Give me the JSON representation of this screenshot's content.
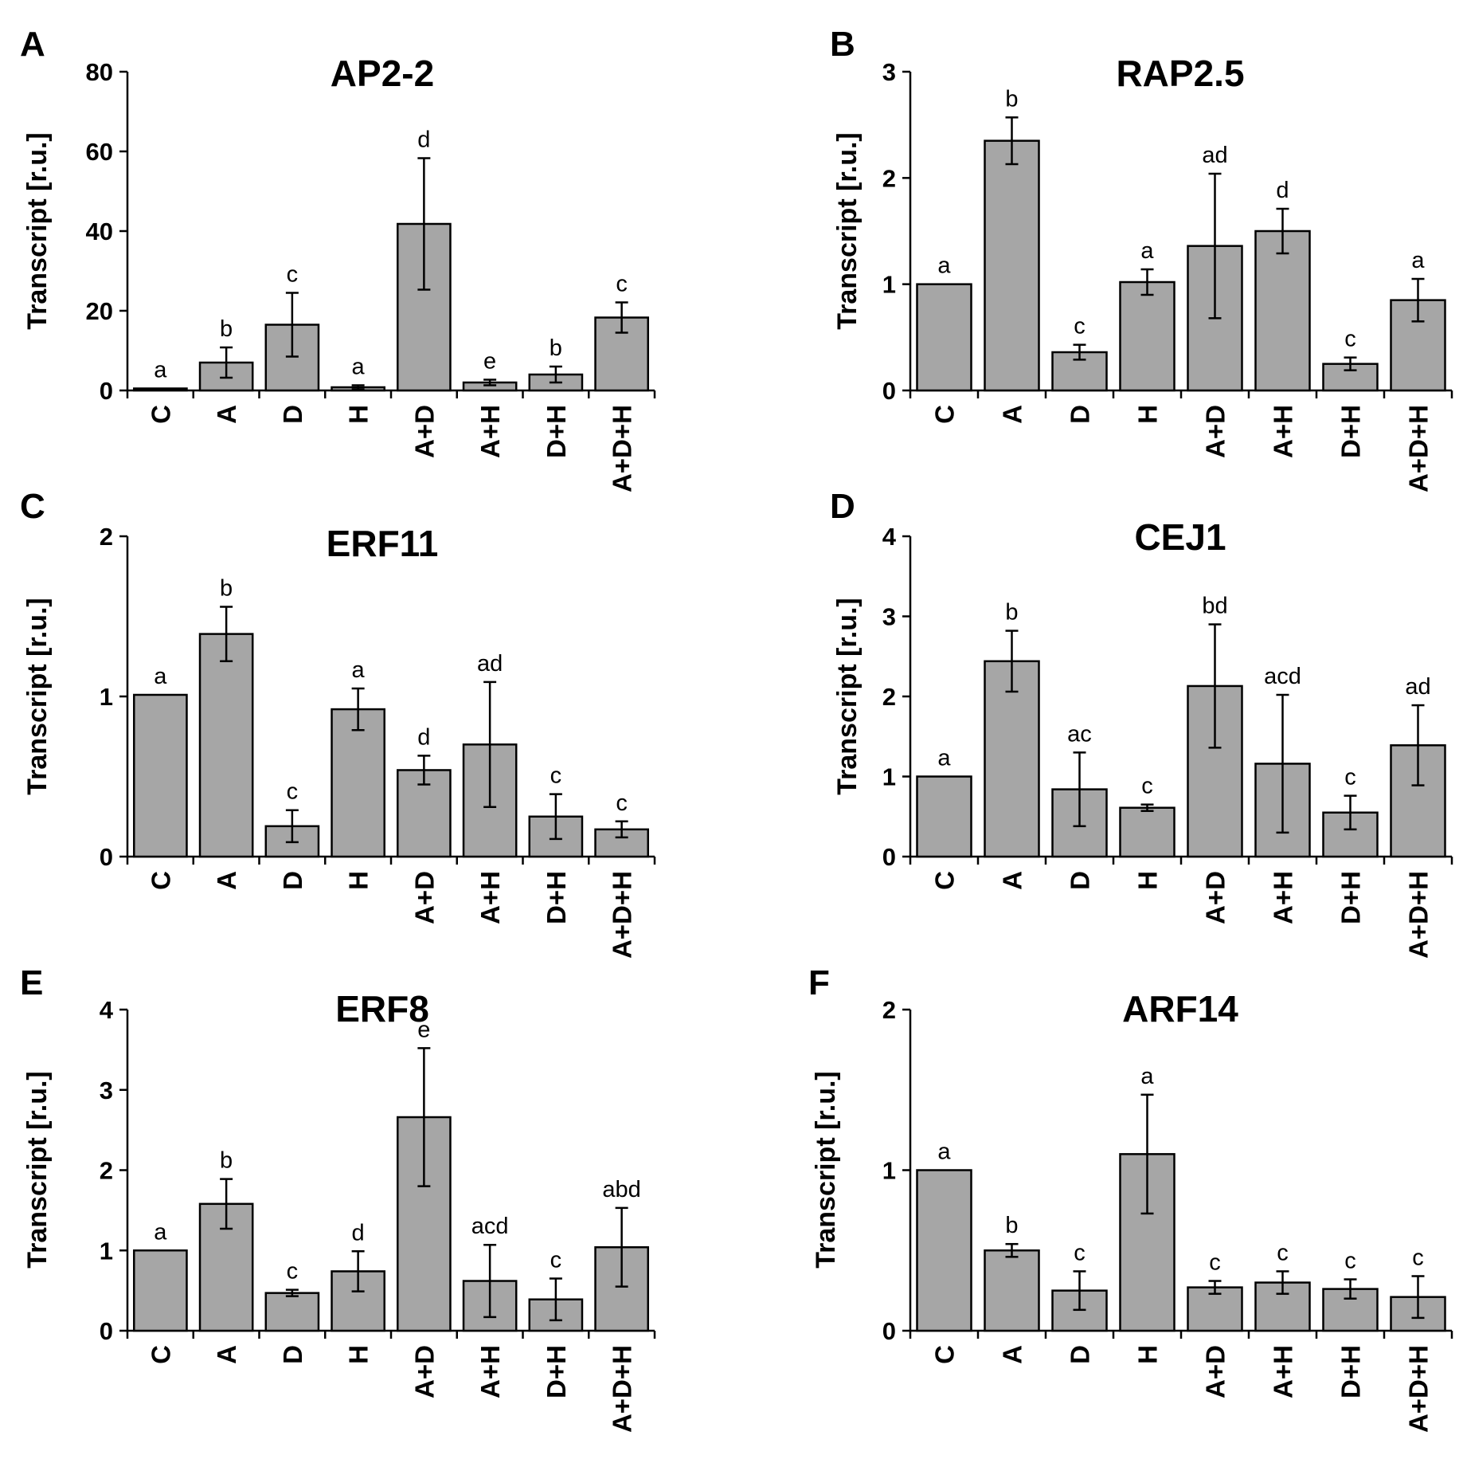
{
  "colors": {
    "bar_fill": "#a6a6a6",
    "axis": "#000000",
    "text": "#000000"
  },
  "chart_data": [
    {
      "panel": "A",
      "type": "bar",
      "title": "AP2-2",
      "ylabel": "Transcript [r.u.]",
      "xlabel": "",
      "ylim": [
        0,
        80
      ],
      "yticks": [
        0,
        20,
        40,
        60,
        80
      ],
      "categories": [
        "C",
        "A",
        "D",
        "H",
        "A+D",
        "A+H",
        "D+H",
        "A+D+H"
      ],
      "values": [
        0.5,
        7,
        16.5,
        0.8,
        41.8,
        2,
        4,
        18.3
      ],
      "errors": [
        0,
        3.8,
        8,
        0.5,
        16.5,
        0.7,
        2,
        3.8
      ],
      "labels": [
        "a",
        "b",
        "c",
        "a",
        "d",
        "e",
        "b",
        "c"
      ]
    },
    {
      "panel": "B",
      "type": "bar",
      "title": "RAP2.5",
      "ylabel": "Transcript [r.u.]",
      "xlabel": "",
      "ylim": [
        0,
        3
      ],
      "yticks": [
        0,
        1,
        2,
        3
      ],
      "categories": [
        "C",
        "A",
        "D",
        "H",
        "A+D",
        "A+H",
        "D+H",
        "A+D+H"
      ],
      "values": [
        1,
        2.35,
        0.36,
        1.02,
        1.36,
        1.5,
        0.25,
        0.85
      ],
      "errors": [
        0,
        0.22,
        0.07,
        0.12,
        0.68,
        0.21,
        0.06,
        0.2
      ],
      "labels": [
        "a",
        "b",
        "c",
        "a",
        "ad",
        "d",
        "c",
        "a"
      ]
    },
    {
      "panel": "C",
      "type": "bar",
      "title": "ERF11",
      "ylabel": "Transcript [r.u.]",
      "xlabel": "",
      "ylim": [
        0,
        2
      ],
      "yticks": [
        0,
        1,
        2
      ],
      "categories": [
        "C",
        "A",
        "D",
        "H",
        "A+D",
        "A+H",
        "D+H",
        "A+D+H"
      ],
      "values": [
        1.01,
        1.39,
        0.19,
        0.92,
        0.54,
        0.7,
        0.25,
        0.17
      ],
      "errors": [
        0,
        0.17,
        0.1,
        0.13,
        0.09,
        0.39,
        0.14,
        0.05
      ],
      "labels": [
        "a",
        "b",
        "c",
        "a",
        "d",
        "ad",
        "c",
        "c"
      ]
    },
    {
      "panel": "D",
      "type": "bar",
      "title": "CEJ1",
      "ylabel": "Transcript [r.u.]",
      "xlabel": "",
      "ylim": [
        0,
        4
      ],
      "yticks": [
        0,
        1,
        2,
        3,
        4
      ],
      "categories": [
        "C",
        "A",
        "D",
        "H",
        "A+D",
        "A+H",
        "D+H",
        "A+D+H"
      ],
      "values": [
        1,
        2.44,
        0.84,
        0.61,
        2.13,
        1.16,
        0.55,
        1.39
      ],
      "errors": [
        0,
        0.38,
        0.46,
        0.04,
        0.77,
        0.86,
        0.21,
        0.5
      ],
      "labels": [
        "a",
        "b",
        "ac",
        "c",
        "bd",
        "acd",
        "c",
        "ad"
      ]
    },
    {
      "panel": "E",
      "type": "bar",
      "title": "ERF8",
      "ylabel": "Transcript [r.u.]",
      "xlabel": "",
      "ylim": [
        0,
        4
      ],
      "yticks": [
        0,
        1,
        2,
        3,
        4
      ],
      "categories": [
        "C",
        "A",
        "D",
        "H",
        "A+D",
        "A+H",
        "D+H",
        "A+D+H"
      ],
      "values": [
        1,
        1.58,
        0.47,
        0.74,
        2.66,
        0.62,
        0.39,
        1.04
      ],
      "errors": [
        0,
        0.31,
        0.04,
        0.25,
        0.86,
        0.45,
        0.26,
        0.49
      ],
      "labels": [
        "a",
        "b",
        "c",
        "d",
        "e",
        "acd",
        "c",
        "abd"
      ]
    },
    {
      "panel": "F",
      "type": "bar",
      "title": "ARF14",
      "ylabel": "Transcript [r.u.]",
      "xlabel": "",
      "ylim": [
        0,
        2
      ],
      "yticks": [
        0,
        1,
        2
      ],
      "categories": [
        "C",
        "A",
        "D",
        "H",
        "A+D",
        "A+H",
        "D+H",
        "A+D+H"
      ],
      "values": [
        1,
        0.5,
        0.25,
        1.1,
        0.27,
        0.3,
        0.26,
        0.21
      ],
      "errors": [
        0,
        0.04,
        0.12,
        0.37,
        0.04,
        0.07,
        0.06,
        0.13
      ],
      "labels": [
        "a",
        "b",
        "c",
        "a",
        "c",
        "c",
        "c",
        "c"
      ]
    }
  ]
}
